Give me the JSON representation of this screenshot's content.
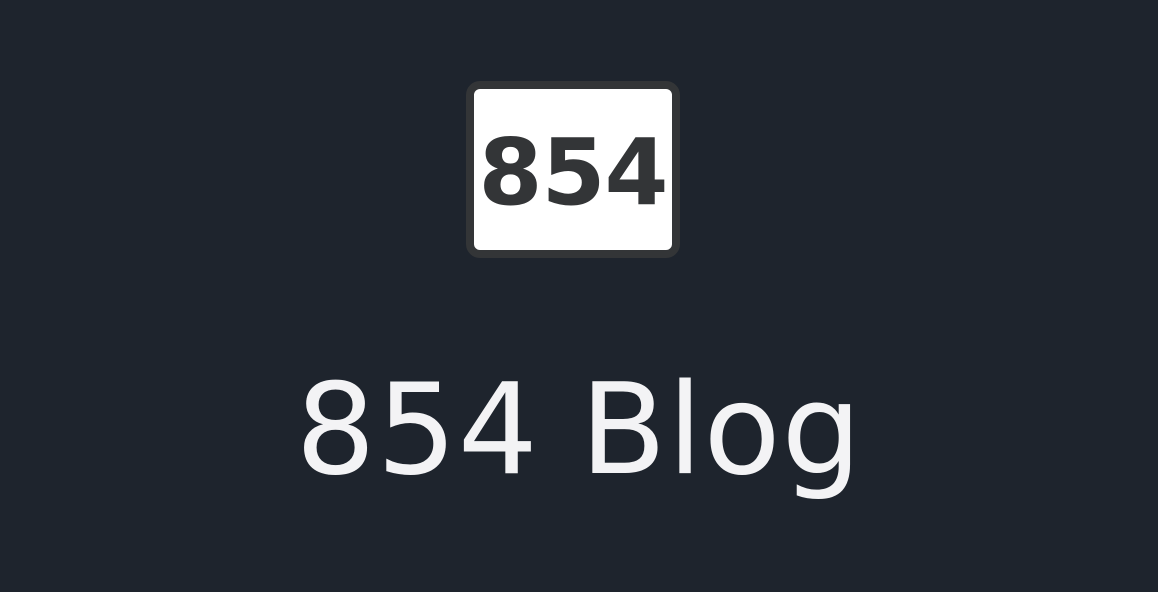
{
  "logo": {
    "number": "854",
    "icon": "number-badge-logo"
  },
  "site": {
    "title": "854 Blog"
  },
  "colors": {
    "background": "#1e242d",
    "badge_fill": "#ffffff",
    "badge_border": "#333537",
    "title_text": "#f3f3f5"
  }
}
